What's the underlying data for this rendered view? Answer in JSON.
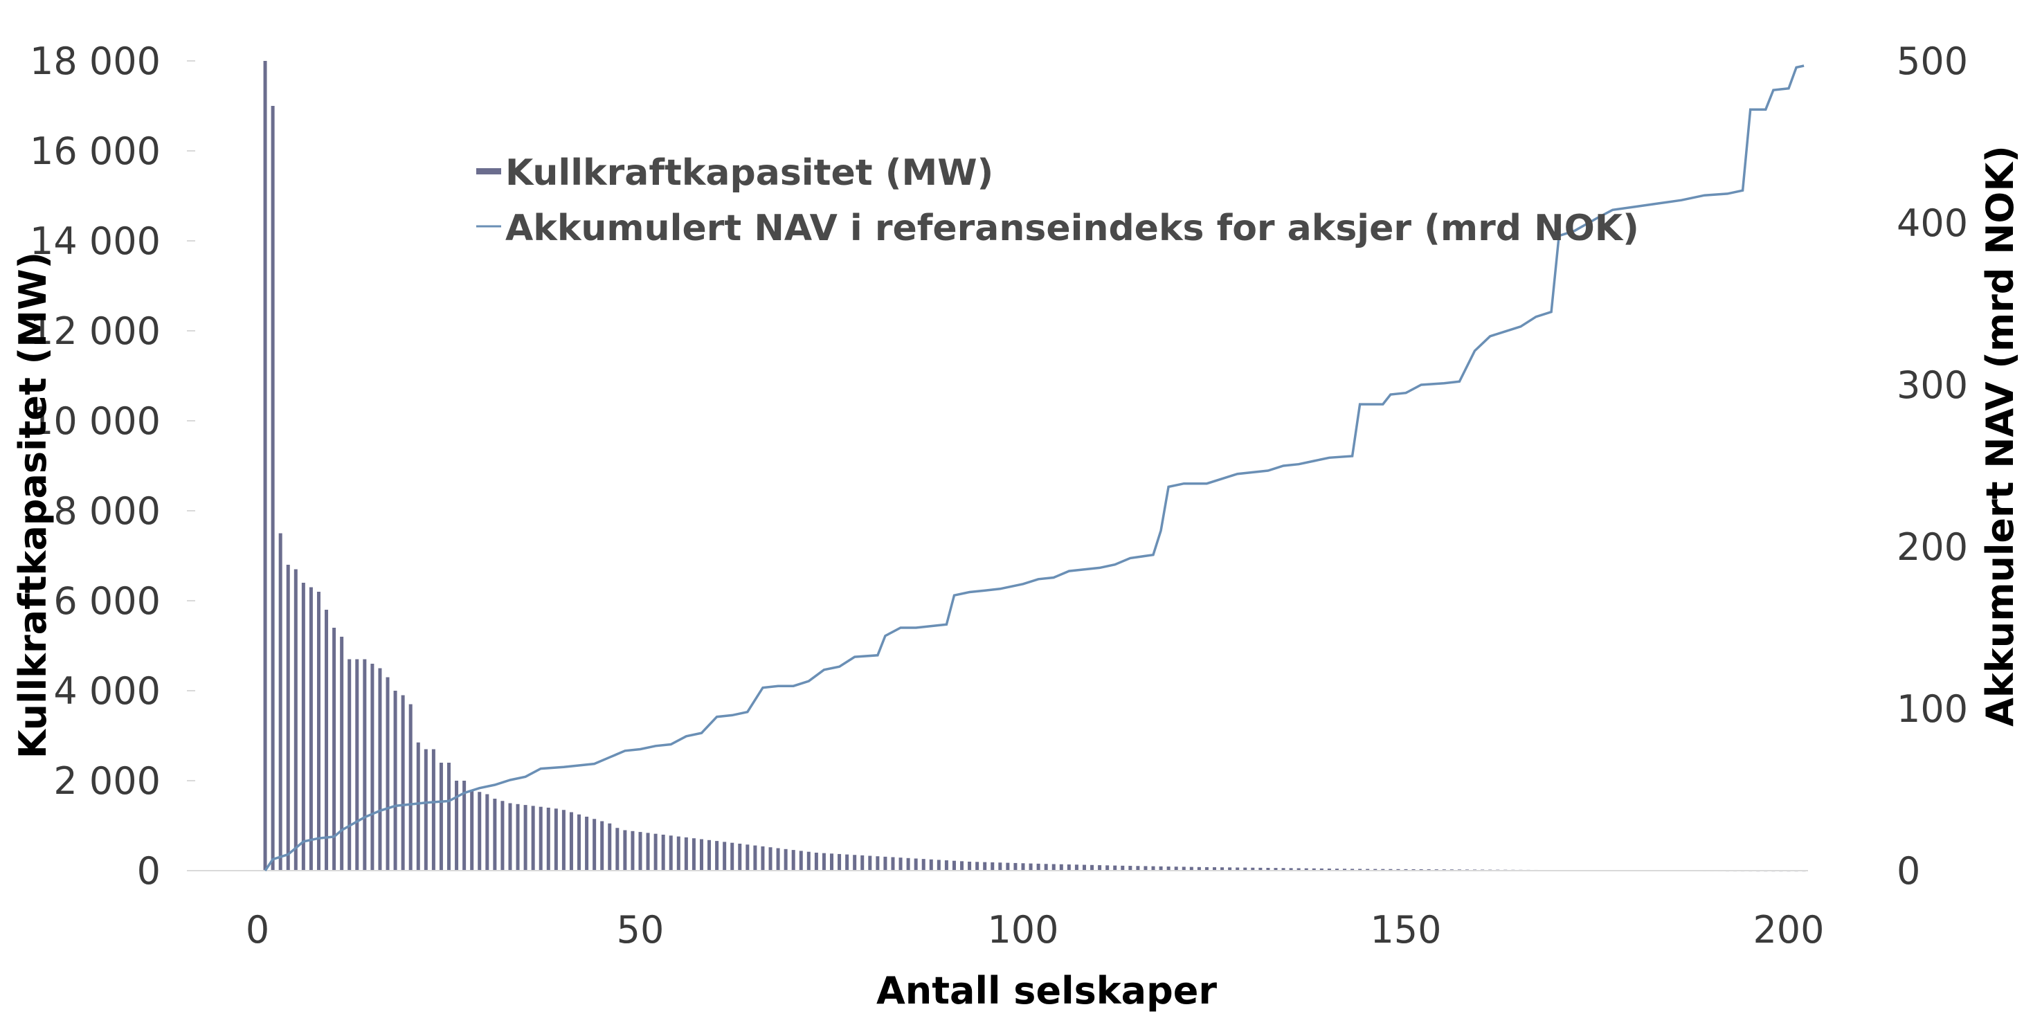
{
  "chart_data": {
    "type": "bar+line",
    "xlabel": "Antall selskaper",
    "ylabel_left": "Kullkraftkapasitet (MW)",
    "ylabel_right": "Akkumulert NAV (mrd NOK)",
    "xlim": [
      0,
      205
    ],
    "ylim_left": [
      0,
      18000
    ],
    "ylim_right": [
      0,
      500
    ],
    "x_ticks": [
      "0",
      "50",
      "100",
      "150",
      "200"
    ],
    "y_left_ticks": [
      "0",
      "2 000",
      "4 000",
      "6 000",
      "8 000",
      "10 000",
      "12 000",
      "14 000",
      "16 000",
      "18 000"
    ],
    "y_right_ticks": [
      "0",
      "100",
      "200",
      "300",
      "400",
      "500"
    ],
    "grid": false,
    "legend_position": "top-center",
    "bar_series": {
      "name": "Kullkraftkapasitet (MW)",
      "color": "#6b6d8e",
      "x_start": 1,
      "values": [
        18000,
        17000,
        7500,
        6800,
        6700,
        6400,
        6300,
        6200,
        5800,
        5400,
        5200,
        4700,
        4700,
        4700,
        4600,
        4500,
        4300,
        4000,
        3900,
        3700,
        2850,
        2700,
        2700,
        2400,
        2400,
        2000,
        2000,
        1800,
        1750,
        1700,
        1600,
        1550,
        1500,
        1480,
        1460,
        1440,
        1420,
        1400,
        1380,
        1350,
        1300,
        1250,
        1200,
        1150,
        1100,
        1050,
        950,
        900,
        880,
        860,
        840,
        820,
        800,
        780,
        760,
        740,
        720,
        700,
        680,
        660,
        640,
        620,
        600,
        580,
        560,
        540,
        520,
        500,
        480,
        460,
        440,
        420,
        400,
        390,
        380,
        370,
        360,
        350,
        340,
        330,
        320,
        310,
        300,
        290,
        280,
        270,
        260,
        250,
        240,
        230,
        220,
        210,
        200,
        195,
        190,
        185,
        180,
        175,
        170,
        165,
        160,
        155,
        150,
        146,
        142,
        138,
        134,
        130,
        126,
        122,
        118,
        114,
        110,
        107,
        104,
        101,
        98,
        95,
        92,
        89,
        86,
        83,
        80,
        78,
        76,
        74,
        72,
        70,
        68,
        66,
        64,
        62,
        60,
        58,
        56,
        54,
        52,
        50,
        48,
        46,
        44,
        42,
        40,
        39,
        38,
        37,
        36,
        35,
        34,
        33,
        32,
        31,
        30,
        29,
        28,
        27,
        26,
        25,
        24,
        23,
        22,
        21,
        20,
        19,
        18,
        17,
        16,
        15,
        14,
        13,
        12,
        11,
        10,
        10,
        9,
        9,
        8,
        8,
        7,
        7,
        6,
        6,
        5,
        5,
        5,
        4,
        4,
        4,
        3,
        3,
        3,
        2,
        2,
        2,
        2,
        1,
        1,
        1,
        1,
        1,
        1,
        1
      ]
    },
    "line_series": {
      "name": "Akkumulert NAV i referanseindeks for aksjer (mrd NOK)",
      "color": "#6a8fb5",
      "points": [
        [
          1,
          0
        ],
        [
          2,
          7
        ],
        [
          4,
          10
        ],
        [
          6,
          18
        ],
        [
          8,
          20
        ],
        [
          10,
          21
        ],
        [
          11,
          25
        ],
        [
          14,
          33
        ],
        [
          16,
          37
        ],
        [
          18,
          40
        ],
        [
          20,
          41
        ],
        [
          22,
          42
        ],
        [
          25,
          43
        ],
        [
          27,
          48
        ],
        [
          29,
          51
        ],
        [
          31,
          53
        ],
        [
          33,
          56
        ],
        [
          35,
          58
        ],
        [
          37,
          63
        ],
        [
          40,
          64
        ],
        [
          44,
          66
        ],
        [
          46,
          70
        ],
        [
          48,
          74
        ],
        [
          50,
          75
        ],
        [
          52,
          77
        ],
        [
          54,
          78
        ],
        [
          56,
          83
        ],
        [
          58,
          85
        ],
        [
          60,
          95
        ],
        [
          62,
          96
        ],
        [
          64,
          98
        ],
        [
          66,
          113
        ],
        [
          68,
          114
        ],
        [
          70,
          114
        ],
        [
          72,
          117
        ],
        [
          74,
          124
        ],
        [
          76,
          126
        ],
        [
          78,
          132
        ],
        [
          81,
          133
        ],
        [
          82,
          145
        ],
        [
          84,
          150
        ],
        [
          86,
          150
        ],
        [
          90,
          152
        ],
        [
          91,
          170
        ],
        [
          93,
          172
        ],
        [
          95,
          173
        ],
        [
          97,
          174
        ],
        [
          100,
          177
        ],
        [
          102,
          180
        ],
        [
          104,
          181
        ],
        [
          106,
          185
        ],
        [
          108,
          186
        ],
        [
          110,
          187
        ],
        [
          112,
          189
        ],
        [
          114,
          193
        ],
        [
          117,
          195
        ],
        [
          118,
          210
        ],
        [
          119,
          237
        ],
        [
          121,
          239
        ],
        [
          124,
          239
        ],
        [
          126,
          242
        ],
        [
          128,
          245
        ],
        [
          130,
          246
        ],
        [
          132,
          247
        ],
        [
          134,
          250
        ],
        [
          136,
          251
        ],
        [
          138,
          253
        ],
        [
          140,
          255
        ],
        [
          143,
          256
        ],
        [
          144,
          288
        ],
        [
          147,
          288
        ],
        [
          148,
          294
        ],
        [
          150,
          295
        ],
        [
          152,
          300
        ],
        [
          155,
          301
        ],
        [
          157,
          302
        ],
        [
          159,
          321
        ],
        [
          161,
          330
        ],
        [
          163,
          333
        ],
        [
          165,
          336
        ],
        [
          167,
          342
        ],
        [
          169,
          345
        ],
        [
          170,
          392
        ],
        [
          172,
          395
        ],
        [
          175,
          403
        ],
        [
          177,
          408
        ],
        [
          180,
          410
        ],
        [
          183,
          412
        ],
        [
          186,
          414
        ],
        [
          189,
          417
        ],
        [
          192,
          418
        ],
        [
          194,
          420
        ],
        [
          195,
          470
        ],
        [
          197,
          470
        ],
        [
          198,
          482
        ],
        [
          200,
          483
        ],
        [
          201,
          496
        ],
        [
          202,
          497
        ]
      ]
    }
  }
}
